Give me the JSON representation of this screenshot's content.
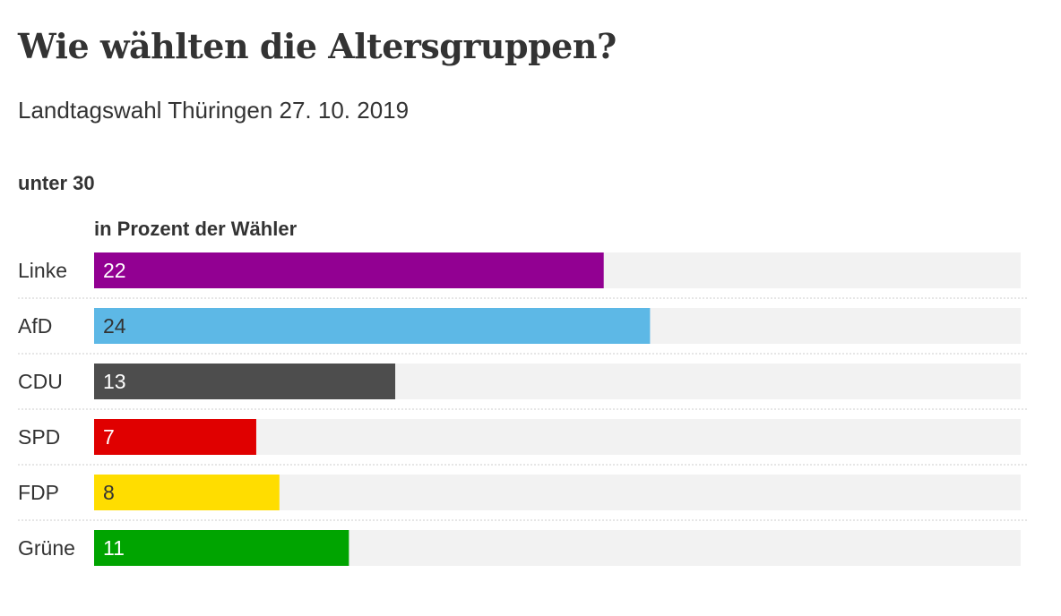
{
  "title": "Wie wählten die Altersgruppen?",
  "subtitle": "Landtagswahl Thüringen 27. 10. 2019",
  "group_label": "unter 30",
  "axis_label": "in Prozent der Wähler",
  "chart_data": {
    "type": "bar",
    "orientation": "horizontal",
    "title": "Wie wählten die Altersgruppen?",
    "subtitle": "Landtagswahl Thüringen 27. 10. 2019",
    "group": "unter 30",
    "xlabel": "in Prozent der Wähler",
    "ylabel": "",
    "xlim": [
      0,
      40
    ],
    "grid": false,
    "legend": "none",
    "categories": [
      "Linke",
      "AfD",
      "CDU",
      "SPD",
      "FDP",
      "Grüne"
    ],
    "values": [
      22,
      24,
      13,
      7,
      8,
      11
    ],
    "colors": [
      "#920092",
      "#5db8e6",
      "#4d4d4d",
      "#e00000",
      "#ffdd00",
      "#00a400"
    ],
    "value_text_colors": [
      "#ffffff",
      "#333333",
      "#ffffff",
      "#ffffff",
      "#333333",
      "#ffffff"
    ],
    "track_color": "#f2f2f2"
  }
}
